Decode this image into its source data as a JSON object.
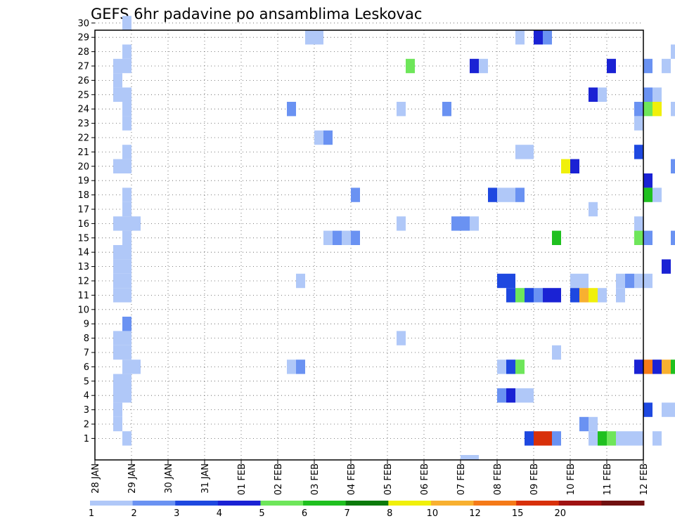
{
  "chart_data": {
    "type": "heatmap",
    "title": "GEFS 6hr padavine po ansamblima Leskovac",
    "xlabel": "",
    "ylabel": "",
    "x_tick_labels": [
      "28 JAN",
      "29 JAN",
      "30 JAN",
      "31 JAN",
      "01 FEB",
      "02 FEB",
      "03 FEB",
      "04 FEB",
      "05 FEB",
      "06 FEB",
      "07 FEB",
      "08 FEB",
      "09 FEB",
      "10 FEB",
      "11 FEB",
      "12 FEB"
    ],
    "y_tick_labels": [
      "30",
      "29",
      "28",
      "27",
      "26",
      "25",
      "24",
      "23",
      "22",
      "21",
      "20",
      "19",
      "18",
      "17",
      "16",
      "15",
      "14",
      "13",
      "12",
      "11",
      "10",
      "9",
      "8",
      "7",
      "6",
      "5",
      "4",
      "3",
      "2",
      "1"
    ],
    "xlim_days": [
      0,
      15
    ],
    "ylim": [
      0,
      30
    ],
    "grid": true,
    "legend": {
      "placement": "bottom",
      "labels": [
        "1",
        "2",
        "3",
        "4",
        "5",
        "6",
        "7",
        "8",
        "10",
        "12",
        "15",
        "20"
      ],
      "colors": [
        "#b0c8f8",
        "#6a92f2",
        "#1e48e0",
        "#1a22d4",
        "#6ee65a",
        "#1fc01f",
        "#0b7a0b",
        "#f0f00a",
        "#f8b030",
        "#f57a18",
        "#d8300a",
        "#a01212",
        "#701010"
      ]
    },
    "levels": [
      1,
      2,
      3,
      4,
      5,
      6,
      7,
      8,
      10,
      12,
      15,
      20
    ],
    "cells": [
      {
        "m": 1,
        "d": 0.75,
        "v": 1
      },
      {
        "m": 2,
        "d": 0.5,
        "v": 1
      },
      {
        "m": 3,
        "d": 0.5,
        "v": 1
      },
      {
        "m": 4,
        "d": 0.5,
        "v": 1
      },
      {
        "m": 4,
        "d": 0.75,
        "v": 1
      },
      {
        "m": 5,
        "d": 0.5,
        "v": 1
      },
      {
        "m": 5,
        "d": 0.75,
        "v": 1
      },
      {
        "m": 6,
        "d": 0.75,
        "v": 1
      },
      {
        "m": 6,
        "d": 1.0,
        "v": 1
      },
      {
        "m": 7,
        "d": 0.5,
        "v": 1
      },
      {
        "m": 7,
        "d": 0.75,
        "v": 1
      },
      {
        "m": 8,
        "d": 0.5,
        "v": 1
      },
      {
        "m": 8,
        "d": 0.75,
        "v": 1
      },
      {
        "m": 9,
        "d": 0.75,
        "v": 2
      },
      {
        "m": 11,
        "d": 0.5,
        "v": 1
      },
      {
        "m": 11,
        "d": 0.75,
        "v": 1
      },
      {
        "m": 12,
        "d": 0.5,
        "v": 1
      },
      {
        "m": 12,
        "d": 0.75,
        "v": 1
      },
      {
        "m": 13,
        "d": 0.5,
        "v": 1
      },
      {
        "m": 13,
        "d": 0.75,
        "v": 1
      },
      {
        "m": 14,
        "d": 0.5,
        "v": 1
      },
      {
        "m": 14,
        "d": 0.75,
        "v": 1
      },
      {
        "m": 15,
        "d": 0.75,
        "v": 1
      },
      {
        "m": 16,
        "d": 0.5,
        "v": 1
      },
      {
        "m": 16,
        "d": 0.75,
        "v": 1
      },
      {
        "m": 16,
        "d": 1.0,
        "v": 1
      },
      {
        "m": 17,
        "d": 0.75,
        "v": 1
      },
      {
        "m": 18,
        "d": 0.75,
        "v": 1
      },
      {
        "m": 20,
        "d": 0.5,
        "v": 1
      },
      {
        "m": 20,
        "d": 0.75,
        "v": 1
      },
      {
        "m": 21,
        "d": 0.75,
        "v": 1
      },
      {
        "m": 23,
        "d": 0.75,
        "v": 1
      },
      {
        "m": 24,
        "d": 0.75,
        "v": 1
      },
      {
        "m": 25,
        "d": 0.5,
        "v": 1
      },
      {
        "m": 25,
        "d": 0.75,
        "v": 1
      },
      {
        "m": 26,
        "d": 0.5,
        "v": 1
      },
      {
        "m": 27,
        "d": 0.5,
        "v": 1
      },
      {
        "m": 27,
        "d": 0.75,
        "v": 1
      },
      {
        "m": 28,
        "d": 0.75,
        "v": 1
      },
      {
        "m": 30,
        "d": 0.75,
        "v": 1
      },
      {
        "m": 29,
        "d": 5.75,
        "v": 1
      },
      {
        "m": 29,
        "d": 6.0,
        "v": 1
      },
      {
        "m": 24,
        "d": 5.25,
        "v": 2
      },
      {
        "m": 22,
        "d": 6.0,
        "v": 1
      },
      {
        "m": 22,
        "d": 6.25,
        "v": 2
      },
      {
        "m": 15,
        "d": 6.25,
        "v": 1
      },
      {
        "m": 15,
        "d": 6.5,
        "v": 2
      },
      {
        "m": 15,
        "d": 6.75,
        "v": 1
      },
      {
        "m": 15,
        "d": 7.0,
        "v": 2
      },
      {
        "m": 18,
        "d": 7.0,
        "v": 2
      },
      {
        "m": 12,
        "d": 5.5,
        "v": 1
      },
      {
        "m": 6,
        "d": 5.25,
        "v": 1
      },
      {
        "m": 6,
        "d": 5.5,
        "v": 2
      },
      {
        "m": 27,
        "d": 8.5,
        "v": 5.5
      },
      {
        "m": 24,
        "d": 8.25,
        "v": 1
      },
      {
        "m": 16,
        "d": 8.25,
        "v": 1
      },
      {
        "m": 8,
        "d": 8.25,
        "v": 1
      },
      {
        "m": 24,
        "d": 9.5,
        "v": 2
      },
      {
        "m": 16,
        "d": 9.75,
        "v": 2
      },
      {
        "m": 16,
        "d": 10.0,
        "v": 2
      },
      {
        "m": 16,
        "d": 10.25,
        "v": 1
      },
      {
        "m": 27,
        "d": 10.25,
        "v": 4.5
      },
      {
        "m": 27,
        "d": 10.5,
        "v": 1
      },
      {
        "m": 0,
        "d": 10.0,
        "v": 1
      },
      {
        "m": 0,
        "d": 10.25,
        "v": 1
      },
      {
        "m": 18,
        "d": 10.75,
        "v": 3
      },
      {
        "m": 18,
        "d": 11.0,
        "v": 1
      },
      {
        "m": 18,
        "d": 11.25,
        "v": 1
      },
      {
        "m": 18,
        "d": 11.5,
        "v": 2
      },
      {
        "m": 12,
        "d": 11.0,
        "v": 3
      },
      {
        "m": 12,
        "d": 11.25,
        "v": 3
      },
      {
        "m": 11,
        "d": 11.25,
        "v": 3
      },
      {
        "m": 11,
        "d": 11.5,
        "v": 5.5
      },
      {
        "m": 11,
        "d": 11.75,
        "v": 3
      },
      {
        "m": 11,
        "d": 12.0,
        "v": 2
      },
      {
        "m": 11,
        "d": 12.25,
        "v": 4.5
      },
      {
        "m": 11,
        "d": 12.5,
        "v": 4.5
      },
      {
        "m": 6,
        "d": 11.0,
        "v": 1
      },
      {
        "m": 6,
        "d": 11.25,
        "v": 3
      },
      {
        "m": 6,
        "d": 11.5,
        "v": 5.5
      },
      {
        "m": 4,
        "d": 11.0,
        "v": 2
      },
      {
        "m": 4,
        "d": 11.25,
        "v": 4.5
      },
      {
        "m": 4,
        "d": 11.5,
        "v": 1
      },
      {
        "m": 4,
        "d": 11.75,
        "v": 1
      },
      {
        "m": 21,
        "d": 11.5,
        "v": 1
      },
      {
        "m": 21,
        "d": 11.75,
        "v": 1
      },
      {
        "m": 29,
        "d": 11.5,
        "v": 1
      },
      {
        "m": 1,
        "d": 11.75,
        "v": 3
      },
      {
        "m": 1,
        "d": 12.0,
        "v": 15
      },
      {
        "m": 1,
        "d": 12.25,
        "v": 15
      },
      {
        "m": 1,
        "d": 12.5,
        "v": 2
      },
      {
        "m": 29,
        "d": 12.0,
        "v": 4.5
      },
      {
        "m": 29,
        "d": 12.25,
        "v": 2
      },
      {
        "m": 15,
        "d": 12.5,
        "v": 6.5
      },
      {
        "m": 7,
        "d": 12.5,
        "v": 1
      },
      {
        "m": 20,
        "d": 12.75,
        "v": 8
      },
      {
        "m": 20,
        "d": 13.0,
        "v": 4.5
      },
      {
        "m": 12,
        "d": 13.0,
        "v": 1
      },
      {
        "m": 12,
        "d": 13.25,
        "v": 1
      },
      {
        "m": 11,
        "d": 13.0,
        "v": 3
      },
      {
        "m": 11,
        "d": 13.25,
        "v": 11
      },
      {
        "m": 11,
        "d": 13.5,
        "v": 8
      },
      {
        "m": 11,
        "d": 13.75,
        "v": 1
      },
      {
        "m": 2,
        "d": 13.25,
        "v": 2
      },
      {
        "m": 1,
        "d": 13.5,
        "v": 1
      },
      {
        "m": 1,
        "d": 13.75,
        "v": 6.5
      },
      {
        "m": 1,
        "d": 14.0,
        "v": 5.5
      },
      {
        "m": 1,
        "d": 14.25,
        "v": 1
      },
      {
        "m": 1,
        "d": 14.5,
        "v": 1
      },
      {
        "m": 1,
        "d": 14.75,
        "v": 1
      },
      {
        "m": 1,
        "d": 15.25,
        "v": 1
      },
      {
        "m": 2,
        "d": 13.5,
        "v": 1
      },
      {
        "m": 25,
        "d": 13.5,
        "v": 4.5
      },
      {
        "m": 25,
        "d": 13.75,
        "v": 1
      },
      {
        "m": 17,
        "d": 13.5,
        "v": 1
      },
      {
        "m": 27,
        "d": 14.0,
        "v": 4.5
      },
      {
        "m": 12,
        "d": 14.25,
        "v": 1
      },
      {
        "m": 12,
        "d": 14.5,
        "v": 2
      },
      {
        "m": 12,
        "d": 14.75,
        "v": 1
      },
      {
        "m": 12,
        "d": 15.0,
        "v": 1
      },
      {
        "m": 11,
        "d": 14.25,
        "v": 1
      },
      {
        "m": 24,
        "d": 14.75,
        "v": 2
      },
      {
        "m": 24,
        "d": 15.0,
        "v": 5.5
      },
      {
        "m": 24,
        "d": 15.25,
        "v": 8
      },
      {
        "m": 23,
        "d": 14.75,
        "v": 1
      },
      {
        "m": 25,
        "d": 15.0,
        "v": 2
      },
      {
        "m": 25,
        "d": 15.25,
        "v": 1
      },
      {
        "m": 27,
        "d": 15.0,
        "v": 2
      },
      {
        "m": 27,
        "d": 15.5,
        "v": 1
      },
      {
        "m": 21,
        "d": 14.75,
        "v": 3
      },
      {
        "m": 19,
        "d": 15.0,
        "v": 4.5
      },
      {
        "m": 18,
        "d": 15.0,
        "v": 6.5
      },
      {
        "m": 18,
        "d": 15.25,
        "v": 1
      },
      {
        "m": 16,
        "d": 14.75,
        "v": 1
      },
      {
        "m": 15,
        "d": 14.75,
        "v": 5.5
      },
      {
        "m": 15,
        "d": 15.0,
        "v": 2
      },
      {
        "m": 13,
        "d": 15.5,
        "v": 4.5
      },
      {
        "m": 6,
        "d": 14.75,
        "v": 4.5
      },
      {
        "m": 6,
        "d": 15.0,
        "v": 13
      },
      {
        "m": 6,
        "d": 15.25,
        "v": 4.5
      },
      {
        "m": 6,
        "d": 15.5,
        "v": 11
      },
      {
        "m": 6,
        "d": 15.75,
        "v": 6.5
      },
      {
        "m": 3,
        "d": 15.0,
        "v": 3
      },
      {
        "m": 3,
        "d": 15.5,
        "v": 1
      },
      {
        "m": 3,
        "d": 15.75,
        "v": 1
      },
      {
        "m": 28,
        "d": 15.75,
        "v": 1
      },
      {
        "m": 24,
        "d": 15.75,
        "v": 1
      },
      {
        "m": 20,
        "d": 15.75,
        "v": 2
      },
      {
        "m": 15,
        "d": 15.75,
        "v": 2
      }
    ]
  }
}
